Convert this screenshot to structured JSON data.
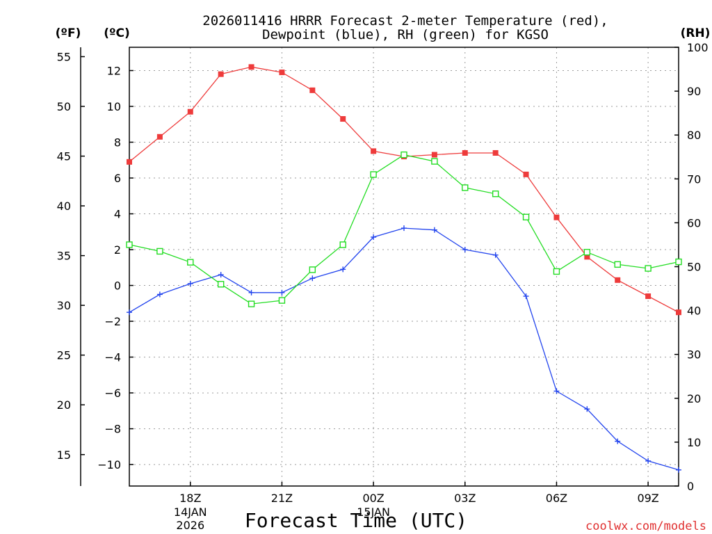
{
  "chart_data": {
    "type": "line",
    "title_line1": "2026011416 HRRR Forecast 2-meter Temperature (red),",
    "title_line2": "Dewpoint (blue), RH (green) for KGSO",
    "xlabel": "Forecast Time (UTC)",
    "credit": "coolwx.com/models",
    "units": {
      "fahrenheit": "(ºF)",
      "celsius": "(ºC)",
      "rh": "(RH)"
    },
    "forecast_hours": [
      16,
      17,
      18,
      19,
      20,
      21,
      22,
      23,
      24,
      25,
      26,
      27,
      28,
      29,
      30,
      31,
      32,
      33,
      34
    ],
    "x_ticks": [
      {
        "hour": 18,
        "label": "18Z",
        "date_line1": "14JAN",
        "date_line2": "2026"
      },
      {
        "hour": 21,
        "label": "21Z"
      },
      {
        "hour": 24,
        "label": "00Z",
        "date_line1": "15JAN"
      },
      {
        "hour": 27,
        "label": "03Z"
      },
      {
        "hour": 30,
        "label": "06Z"
      },
      {
        "hour": 33,
        "label": "09Z"
      }
    ],
    "xlim": [
      16,
      34
    ],
    "ylim_c": [
      -11.2,
      13.3
    ],
    "ylim_rh": [
      0,
      100
    ],
    "yticks_c": [
      -10,
      -8,
      -6,
      -4,
      -2,
      0,
      2,
      4,
      6,
      8,
      10,
      12
    ],
    "yticks_c_labels": [
      "−10",
      "−8",
      "−6",
      "−4",
      "−2",
      "0",
      "2",
      "4",
      "6",
      "8",
      "10",
      "12"
    ],
    "yticks_f": [
      15,
      20,
      25,
      30,
      35,
      40,
      45,
      50,
      55
    ],
    "yticks_f_labels": [
      "15",
      "20",
      "25",
      "30",
      "35",
      "40",
      "45",
      "50",
      "55"
    ],
    "yticks_rh": [
      0,
      10,
      20,
      30,
      40,
      50,
      60,
      70,
      80,
      90,
      100
    ],
    "yticks_rh_labels": [
      "0",
      "10",
      "20",
      "30",
      "40",
      "50",
      "60",
      "70",
      "80",
      "90",
      "100"
    ],
    "series": [
      {
        "name": "2-meter Temperature",
        "units": "C",
        "color": "#ee3b3b",
        "marker": "filled-square",
        "values": [
          6.9,
          8.3,
          9.7,
          11.8,
          12.2,
          11.9,
          10.9,
          9.3,
          7.5,
          7.2,
          7.3,
          7.4,
          7.4,
          6.2,
          3.8,
          1.6,
          0.3,
          -0.6,
          -1.5
        ]
      },
      {
        "name": "Dewpoint",
        "units": "C",
        "color": "#2244ee",
        "marker": "plus",
        "values": [
          -1.5,
          -0.5,
          0.1,
          0.6,
          -0.4,
          -0.4,
          0.4,
          0.9,
          2.7,
          3.2,
          3.1,
          2.0,
          1.7,
          -0.6,
          -5.9,
          -6.9,
          -8.7,
          -9.8,
          -10.3
        ]
      },
      {
        "name": "RH",
        "units": "%",
        "color": "#22dd22",
        "marker": "open-square",
        "values": [
          55,
          53.5,
          51,
          46,
          41.5,
          42.3,
          49.3,
          55,
          71,
          75.5,
          74,
          68,
          66.6,
          61.3,
          48.9,
          53.3,
          50.5,
          49.6,
          51.1
        ]
      }
    ]
  }
}
